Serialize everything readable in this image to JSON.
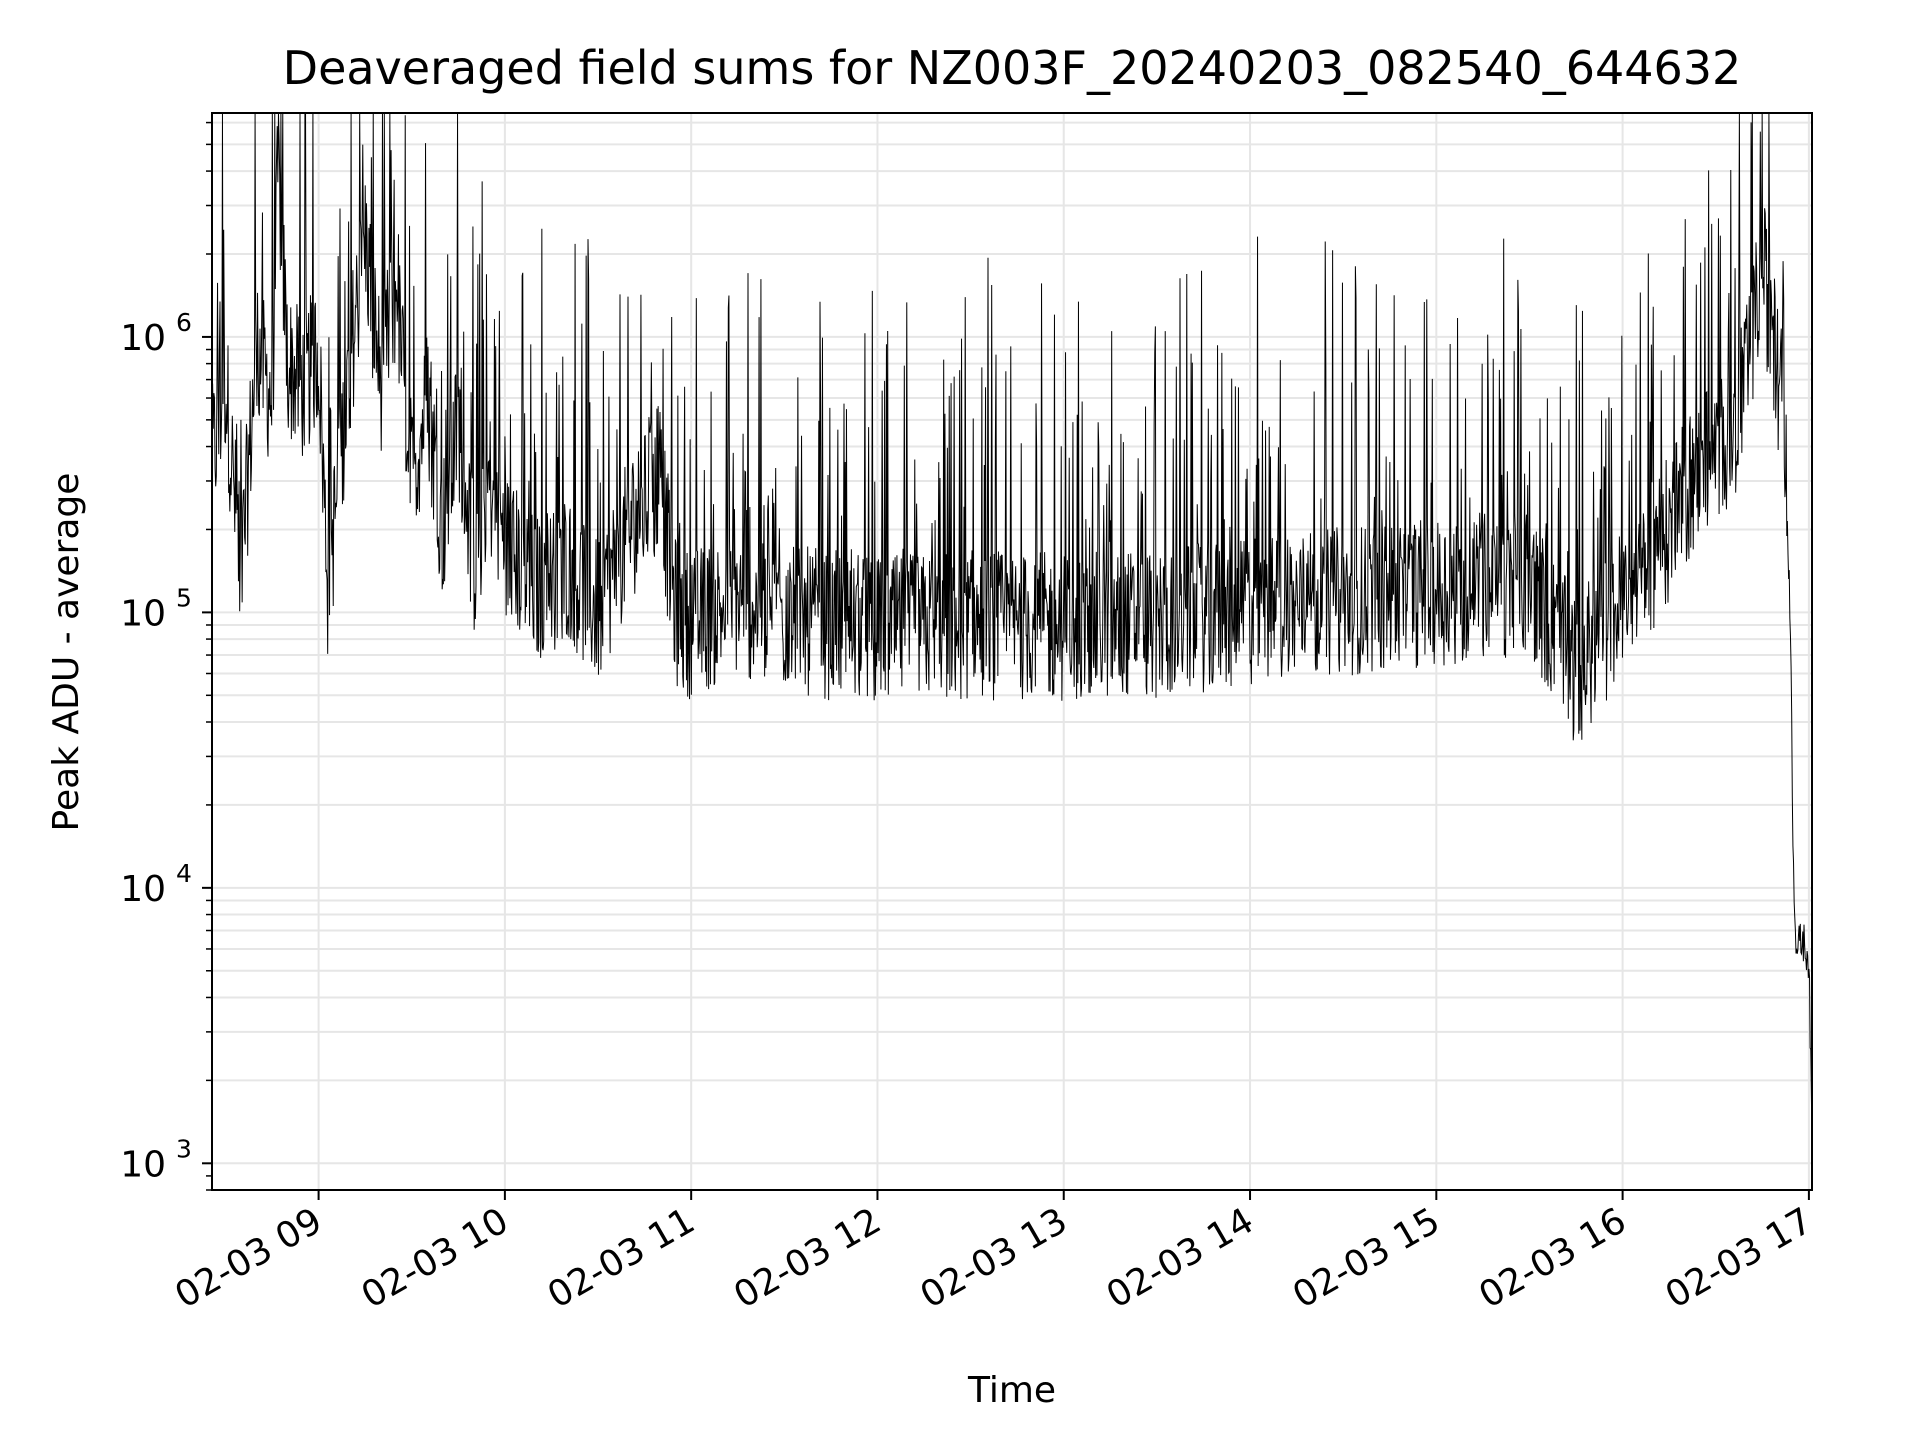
{
  "chart_data": {
    "type": "line",
    "title": "Deaveraged field sums for NZ003F_20240203_082540_644632",
    "xlabel": "Time",
    "ylabel": "Peak ADU - average",
    "xlim": [
      "2024-02-03 08:25:40",
      "2024-02-03 17:01:00"
    ],
    "ylim": [
      800,
      6500000
    ],
    "yscale": "log",
    "grid": true,
    "colors": {
      "line": "#000000",
      "grid": "#e6e6e6",
      "axes": "#000000"
    },
    "x_ticks": [
      "2024-02-03 09:00",
      "2024-02-03 10:00",
      "2024-02-03 11:00",
      "2024-02-03 12:00",
      "2024-02-03 13:00",
      "2024-02-03 14:00",
      "2024-02-03 15:00",
      "2024-02-03 16:00",
      "2024-02-03 17:00"
    ],
    "x_tick_labels": [
      "02-03 09",
      "02-03 10",
      "02-03 11",
      "02-03 12",
      "02-03 13",
      "02-03 14",
      "02-03 15",
      "02-03 16",
      "02-03 17"
    ],
    "y_ticks": [
      1000,
      10000,
      100000,
      1000000
    ],
    "y_tick_labels": [
      {
        "base": "10",
        "exp": "3"
      },
      {
        "base": "10",
        "exp": "4"
      },
      {
        "base": "10",
        "exp": "5"
      },
      {
        "base": "10",
        "exp": "6"
      }
    ],
    "series": [
      {
        "color": "#000000",
        "points": [
          [
            "2024-02-03 08:25:40",
            350000
          ],
          [
            "2024-02-03 08:30",
            700000
          ],
          [
            "2024-02-03 08:35",
            130000
          ],
          [
            "2024-02-03 08:40",
            900000
          ],
          [
            "2024-02-03 08:45",
            600000
          ],
          [
            "2024-02-03 08:47",
            4300000
          ],
          [
            "2024-02-03 08:50",
            800000
          ],
          [
            "2024-02-03 08:55",
            650000
          ],
          [
            "2024-02-03 09:00",
            900000
          ],
          [
            "2024-02-03 09:03",
            120000
          ],
          [
            "2024-02-03 09:10",
            800000
          ],
          [
            "2024-02-03 09:15",
            2300000
          ],
          [
            "2024-02-03 09:20",
            700000
          ],
          [
            "2024-02-03 09:25",
            1500000
          ],
          [
            "2024-02-03 09:30",
            300000
          ],
          [
            "2024-02-03 09:35",
            600000
          ],
          [
            "2024-02-03 09:40",
            200000
          ],
          [
            "2024-02-03 09:45",
            500000
          ],
          [
            "2024-02-03 09:50",
            150000
          ],
          [
            "2024-02-03 09:55",
            300000
          ],
          [
            "2024-02-03 10:00",
            180000
          ],
          [
            "2024-02-03 10:10",
            120000
          ],
          [
            "2024-02-03 10:20",
            150000
          ],
          [
            "2024-02-03 10:30",
            100000
          ],
          [
            "2024-02-03 10:40",
            200000
          ],
          [
            "2024-02-03 10:50",
            300000
          ],
          [
            "2024-02-03 10:55",
            100000
          ],
          [
            "2024-02-03 11:00",
            90000
          ],
          [
            "2024-02-03 11:15",
            110000
          ],
          [
            "2024-02-03 11:30",
            95000
          ],
          [
            "2024-02-03 12:00",
            85000
          ],
          [
            "2024-02-03 12:30",
            90000
          ],
          [
            "2024-02-03 13:00",
            88000
          ],
          [
            "2024-02-03 13:30",
            92000
          ],
          [
            "2024-02-03 14:00",
            100000
          ],
          [
            "2024-02-03 14:30",
            110000
          ],
          [
            "2024-02-03 15:00",
            120000
          ],
          [
            "2024-02-03 15:30",
            130000
          ],
          [
            "2024-02-03 15:45",
            60000
          ],
          [
            "2024-02-03 16:00",
            110000
          ],
          [
            "2024-02-03 16:15",
            200000
          ],
          [
            "2024-02-03 16:25",
            350000
          ],
          [
            "2024-02-03 16:35",
            450000
          ],
          [
            "2024-02-03 16:40",
            700000
          ],
          [
            "2024-02-03 16:45",
            1800000
          ],
          [
            "2024-02-03 16:48",
            1100000
          ],
          [
            "2024-02-03 16:52",
            500000
          ],
          [
            "2024-02-03 16:54",
            100000
          ],
          [
            "2024-02-03 16:55",
            12000
          ],
          [
            "2024-02-03 16:56",
            6000
          ],
          [
            "2024-02-03 16:58",
            6500
          ],
          [
            "2024-02-03 17:00",
            5500
          ],
          [
            "2024-02-03 17:01",
            1200
          ]
        ]
      }
    ]
  }
}
